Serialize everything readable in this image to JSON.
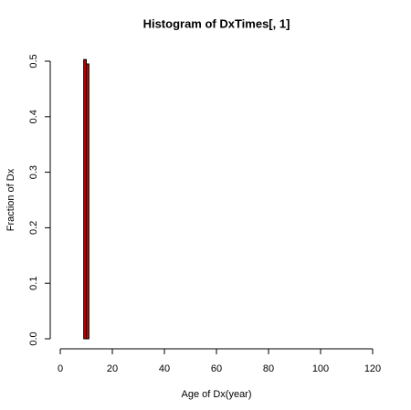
{
  "chart_data": {
    "type": "histogram",
    "title": "Histogram of DxTimes[, 1]",
    "x_label": "Age of Dx(year)",
    "y_label": "Fraction of Dx",
    "bins": [
      0,
      1,
      2,
      3,
      4,
      5,
      6,
      7,
      8,
      9,
      10,
      11,
      12
    ],
    "values": [
      0,
      0,
      0,
      0,
      0,
      0,
      0,
      0,
      0,
      0.503,
      0.495,
      0
    ],
    "color": "#cc0000",
    "xlim": [
      0,
      120
    ],
    "xticks": [
      0,
      20,
      40,
      60,
      80,
      100,
      120
    ],
    "ylim": [
      0,
      0.5
    ],
    "yticks": [
      0.0,
      0.1,
      0.2,
      0.3,
      0.4,
      0.5
    ],
    "grid": false
  }
}
